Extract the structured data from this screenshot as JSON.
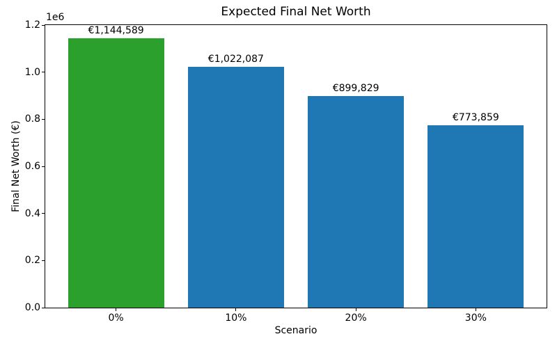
{
  "chart_data": {
    "type": "bar",
    "title": "Expected Final Net Worth",
    "xlabel": "Scenario",
    "ylabel": "Final Net Worth (€)",
    "y_offset_text": "1e6",
    "categories": [
      "0%",
      "10%",
      "20%",
      "30%"
    ],
    "values": [
      1144589,
      1022087,
      899829,
      773859
    ],
    "bar_labels": [
      "€1,144,589",
      "€1,022,087",
      "€899,829",
      "€773,859"
    ],
    "bar_colors": [
      "#2ca02c",
      "#1f77b4",
      "#1f77b4",
      "#1f77b4"
    ],
    "ylim": [
      0,
      1200000
    ],
    "yticks": [
      0,
      200000,
      400000,
      600000,
      800000,
      1000000,
      1200000
    ],
    "ytick_labels": [
      "0.0",
      "0.2",
      "0.4",
      "0.6",
      "0.8",
      "1.0",
      "1.2"
    ],
    "grid": false,
    "legend": "none",
    "colors": {
      "highlight_bar": "#2ca02c",
      "default_bar": "#1f77b4",
      "text": "#000000",
      "background": "#ffffff"
    }
  }
}
